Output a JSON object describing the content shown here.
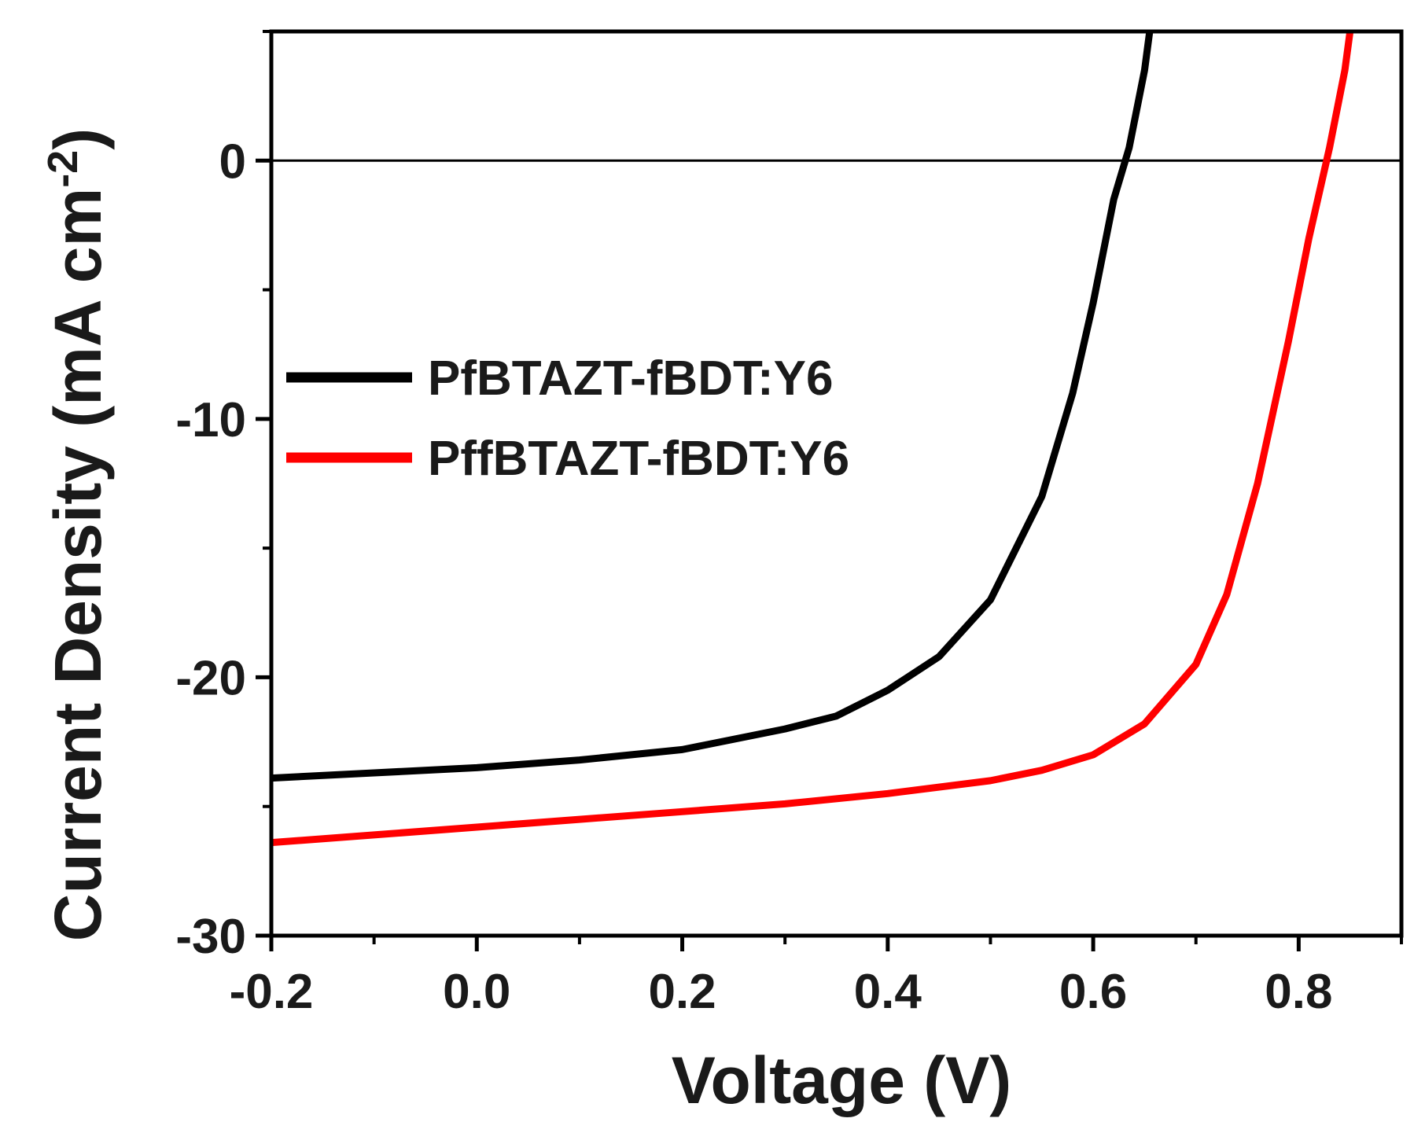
{
  "chart_data": {
    "type": "line",
    "title": "",
    "xlabel": "Voltage (V)",
    "ylabel_main": "Current Density (mA cm",
    "ylabel_sup": "-2",
    "ylabel_close": ")",
    "xlim": [
      -0.2,
      0.9
    ],
    "ylim": [
      -30,
      5
    ],
    "xticks": [
      -0.2,
      0.0,
      0.2,
      0.4,
      0.6,
      0.8
    ],
    "xtick_labels": [
      "-0.2",
      "0.0",
      "0.2",
      "0.4",
      "0.6",
      "0.8"
    ],
    "yticks": [
      -30,
      -20,
      -10,
      0
    ],
    "ytick_labels": [
      "-30",
      "-20",
      "-10",
      "0"
    ],
    "zero_line": true,
    "legend_position": "middle-left",
    "series": [
      {
        "name": "PfBTAZT-fBDT:Y6",
        "color": "#000000",
        "x": [
          -0.2,
          -0.1,
          0.0,
          0.1,
          0.2,
          0.3,
          0.35,
          0.4,
          0.45,
          0.5,
          0.55,
          0.58,
          0.6,
          0.62,
          0.635,
          0.65,
          0.655
        ],
        "y": [
          -23.9,
          -23.7,
          -23.5,
          -23.2,
          -22.8,
          -22.0,
          -21.5,
          -20.5,
          -19.2,
          -17.0,
          -13.0,
          -9.0,
          -5.5,
          -1.5,
          0.5,
          3.5,
          5.0
        ]
      },
      {
        "name": "PffBTAZT-fBDT:Y6",
        "color": "#ff0000",
        "x": [
          -0.2,
          -0.1,
          0.0,
          0.1,
          0.2,
          0.3,
          0.4,
          0.5,
          0.55,
          0.6,
          0.65,
          0.7,
          0.73,
          0.76,
          0.79,
          0.81,
          0.83,
          0.845,
          0.85
        ],
        "y": [
          -26.4,
          -26.1,
          -25.8,
          -25.5,
          -25.2,
          -24.9,
          -24.5,
          -24.0,
          -23.6,
          -23.0,
          -21.8,
          -19.5,
          -16.8,
          -12.5,
          -7.0,
          -3.0,
          0.5,
          3.5,
          5.0
        ]
      }
    ]
  }
}
